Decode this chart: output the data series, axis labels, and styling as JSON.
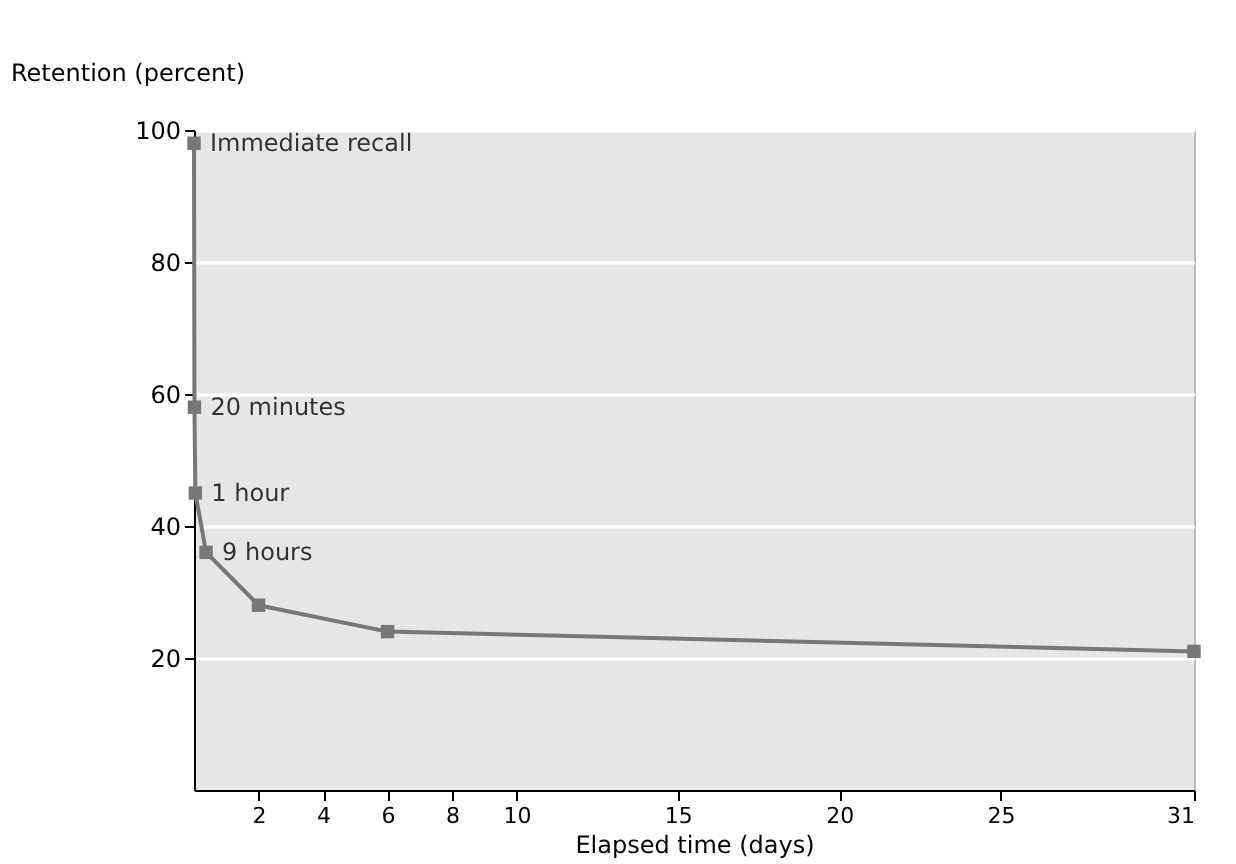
{
  "chart_data": {
    "type": "line",
    "xlabel": "Elapsed time (days)",
    "ylabel": "Retention (percent)",
    "x": [
      0,
      0.014,
      0.042,
      0.375,
      2,
      6,
      31
    ],
    "series": [
      {
        "color": "#777777",
        "values": [
          98,
          58,
          45,
          36,
          28,
          24,
          21
        ]
      }
    ],
    "xlim": [
      0,
      31
    ],
    "xticks": [
      2,
      4,
      6,
      8,
      10,
      15,
      20,
      25,
      31
    ],
    "ylim": [
      0,
      100
    ],
    "yticks": [
      20,
      40,
      60,
      80,
      100
    ],
    "grid": "y",
    "marker": "square",
    "line_style": "solid",
    "annotations": [
      {
        "text": "Immediate recall",
        "x": 0,
        "y": 98
      },
      {
        "text": "20 minutes",
        "x": 0.014,
        "y": 58
      },
      {
        "text": "1 hour",
        "x": 0.042,
        "y": 45
      },
      {
        "text": "9 hours",
        "x": 0.375,
        "y": 36
      }
    ]
  }
}
